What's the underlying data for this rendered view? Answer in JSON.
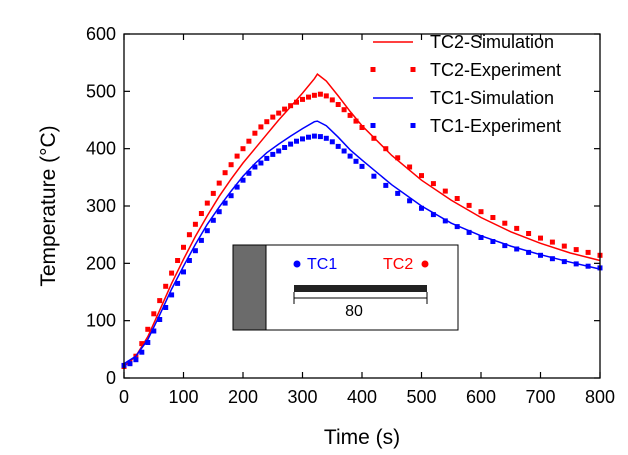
{
  "chart_data": {
    "type": "line",
    "xlabel": "Time (s)",
    "ylabel": "Temperature (°C)",
    "xlim": [
      0,
      800
    ],
    "ylim": [
      0,
      600
    ],
    "xticks": [
      "0",
      "100",
      "200",
      "300",
      "400",
      "500",
      "600",
      "700",
      "800"
    ],
    "yticks": [
      "0",
      "100",
      "200",
      "300",
      "400",
      "500",
      "600"
    ],
    "grid": false,
    "legend_position": "top-right",
    "colors": {
      "tc2": "#ff0000",
      "tc1": "#0000ff"
    },
    "series": [
      {
        "name": "TC2-Simulation",
        "style": "line",
        "color": "#ff0000",
        "x": [
          0,
          20,
          40,
          60,
          80,
          100,
          120,
          140,
          160,
          180,
          200,
          220,
          240,
          260,
          280,
          300,
          320,
          325,
          340,
          360,
          380,
          400,
          450,
          500,
          550,
          600,
          650,
          700,
          750,
          800
        ],
        "y": [
          20,
          38,
          72,
          118,
          165,
          207,
          247,
          283,
          317,
          347,
          375,
          400,
          425,
          450,
          473,
          497,
          522,
          530,
          518,
          492,
          465,
          440,
          388,
          345,
          310,
          280,
          255,
          235,
          218,
          205
        ]
      },
      {
        "name": "TC2-Experiment",
        "style": "square-markers",
        "color": "#ff0000",
        "x": [
          0,
          10,
          20,
          30,
          40,
          50,
          60,
          70,
          80,
          90,
          100,
          110,
          120,
          130,
          140,
          150,
          160,
          170,
          180,
          190,
          200,
          210,
          220,
          230,
          240,
          250,
          260,
          270,
          280,
          290,
          300,
          310,
          320,
          330,
          340,
          350,
          360,
          370,
          380,
          390,
          400,
          420,
          440,
          460,
          480,
          500,
          520,
          540,
          560,
          580,
          600,
          620,
          640,
          660,
          680,
          700,
          720,
          740,
          760,
          780,
          800
        ],
        "y": [
          20,
          26,
          38,
          60,
          85,
          112,
          135,
          160,
          183,
          205,
          228,
          250,
          268,
          287,
          305,
          322,
          340,
          358,
          372,
          387,
          400,
          413,
          427,
          438,
          447,
          455,
          462,
          469,
          475,
          481,
          486,
          490,
          493,
          495,
          492,
          485,
          477,
          468,
          458,
          448,
          437,
          418,
          400,
          384,
          368,
          353,
          339,
          326,
          313,
          301,
          290,
          280,
          270,
          261,
          252,
          244,
          237,
          230,
          224,
          219,
          214
        ]
      },
      {
        "name": "TC1-Simulation",
        "style": "line",
        "color": "#0000ff",
        "x": [
          0,
          20,
          40,
          60,
          80,
          100,
          120,
          140,
          160,
          180,
          200,
          220,
          240,
          260,
          280,
          300,
          320,
          325,
          340,
          360,
          380,
          400,
          450,
          500,
          550,
          600,
          650,
          700,
          750,
          800
        ],
        "y": [
          25,
          38,
          67,
          110,
          155,
          195,
          233,
          268,
          298,
          326,
          352,
          374,
          393,
          408,
          422,
          435,
          447,
          448,
          440,
          420,
          398,
          380,
          337,
          300,
          270,
          248,
          230,
          215,
          202,
          190
        ]
      },
      {
        "name": "TC1-Experiment",
        "style": "square-markers",
        "color": "#0000ff",
        "x": [
          0,
          10,
          20,
          30,
          40,
          50,
          60,
          70,
          80,
          90,
          100,
          110,
          120,
          130,
          140,
          150,
          160,
          170,
          180,
          190,
          200,
          210,
          220,
          230,
          240,
          250,
          260,
          270,
          280,
          290,
          300,
          310,
          320,
          330,
          340,
          350,
          360,
          370,
          380,
          390,
          400,
          420,
          440,
          460,
          480,
          500,
          520,
          540,
          560,
          580,
          600,
          620,
          640,
          660,
          680,
          700,
          720,
          740,
          760,
          780,
          800
        ],
        "y": [
          22,
          25,
          32,
          45,
          62,
          82,
          102,
          123,
          145,
          165,
          185,
          205,
          222,
          240,
          257,
          275,
          290,
          305,
          318,
          333,
          345,
          357,
          368,
          375,
          383,
          390,
          396,
          402,
          408,
          413,
          417,
          420,
          422,
          421,
          418,
          412,
          404,
          396,
          387,
          378,
          369,
          352,
          336,
          322,
          309,
          296,
          285,
          274,
          264,
          254,
          245,
          238,
          231,
          225,
          219,
          214,
          208,
          203,
          199,
          195,
          192
        ]
      }
    ],
    "inset": {
      "tc1_label": "TC1",
      "tc2_label": "TC2",
      "dimension_label": "80"
    }
  }
}
